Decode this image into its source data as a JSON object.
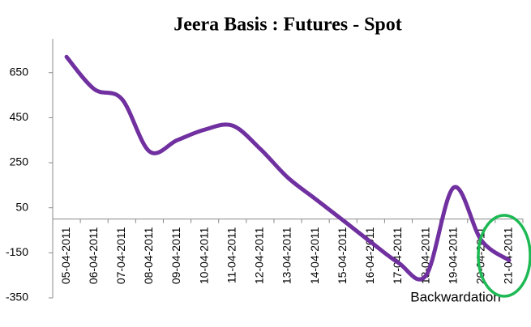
{
  "chart_data": {
    "type": "line",
    "title": "Jeera Basis : Futures - Spot",
    "categories": [
      "05-04-2011",
      "06-04-2011",
      "07-04-2011",
      "08-04-2011",
      "09-04-2011",
      "10-04-2011",
      "11-04-2011",
      "12-04-2011",
      "13-04-2011",
      "14-04-2011",
      "15-04-2011",
      "16-04-2011",
      "17-04-2011",
      "18-04-2011",
      "19-04-2011",
      "20-04-2011",
      "21-04-2011"
    ],
    "values": [
      720,
      577,
      533,
      300,
      350,
      397,
      415,
      312,
      184,
      89,
      -6,
      -102,
      -194,
      -250,
      140,
      -95,
      -183
    ],
    "color": "#7030a0",
    "ylim": [
      -350,
      800
    ],
    "yticks": [
      -350,
      -150,
      50,
      250,
      450,
      650
    ],
    "annotation": "Backwardation"
  }
}
